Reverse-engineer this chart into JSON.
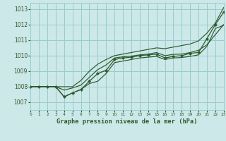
{
  "xlabel": "Graphe pression niveau de la mer (hPa)",
  "bg_color": "#cce8e8",
  "grid_color": "#99cccc",
  "line_color": "#2d5a2d",
  "ylim": [
    1006.5,
    1013.4
  ],
  "xlim": [
    0,
    23
  ],
  "yticks": [
    1007,
    1008,
    1009,
    1010,
    1011,
    1012,
    1013
  ],
  "xticks": [
    0,
    1,
    2,
    3,
    4,
    5,
    6,
    7,
    8,
    9,
    10,
    11,
    12,
    13,
    14,
    15,
    16,
    17,
    18,
    19,
    20,
    21,
    22,
    23
  ],
  "hours": [
    0,
    1,
    2,
    3,
    4,
    5,
    6,
    7,
    8,
    9,
    10,
    11,
    12,
    13,
    14,
    15,
    16,
    17,
    18,
    19,
    20,
    21,
    22,
    23
  ],
  "pressure_line1": [
    1008.0,
    1008.0,
    1008.0,
    1008.0,
    1007.35,
    1007.6,
    1007.82,
    1008.35,
    1008.85,
    1009.05,
    1009.75,
    1009.85,
    1009.9,
    1010.0,
    1010.05,
    1010.1,
    1009.85,
    1009.95,
    1010.0,
    1010.15,
    1010.2,
    1011.1,
    1012.0,
    1012.8
  ],
  "pressure_line2": [
    1008.0,
    1008.0,
    1008.0,
    1008.0,
    1007.78,
    1007.92,
    1008.1,
    1008.6,
    1009.1,
    1009.4,
    1009.85,
    1009.92,
    1009.97,
    1010.05,
    1010.1,
    1010.2,
    1010.0,
    1010.08,
    1010.1,
    1010.2,
    1010.35,
    1010.7,
    1011.35,
    1012.0
  ],
  "pressure_max": [
    1008.0,
    1008.0,
    1008.0,
    1008.0,
    1008.0,
    1008.0,
    1008.4,
    1009.0,
    1009.45,
    1009.75,
    1010.0,
    1010.1,
    1010.2,
    1010.3,
    1010.4,
    1010.5,
    1010.45,
    1010.55,
    1010.65,
    1010.75,
    1010.95,
    1011.45,
    1012.1,
    1013.1
  ],
  "pressure_min": [
    1008.0,
    1008.0,
    1008.0,
    1008.0,
    1007.35,
    1007.6,
    1007.82,
    1008.2,
    1008.35,
    1008.85,
    1009.55,
    1009.65,
    1009.75,
    1009.85,
    1009.9,
    1009.95,
    1009.75,
    1009.85,
    1009.88,
    1009.95,
    1010.05,
    1010.6,
    1011.75,
    1011.95
  ]
}
